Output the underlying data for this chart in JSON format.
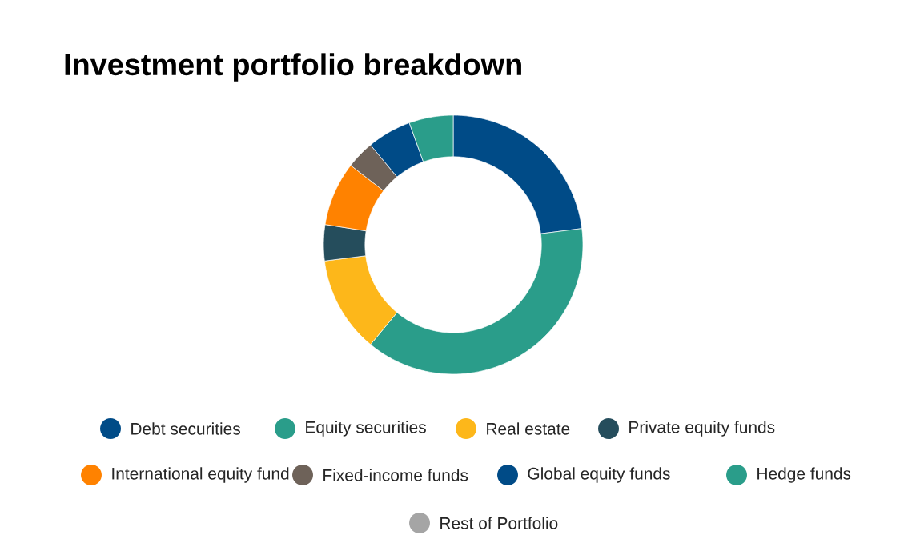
{
  "chart_data": {
    "type": "donut",
    "title": "Investment portfolio breakdown",
    "categories": [
      "Debt securities",
      "Equity securities",
      "Real estate",
      "Private equity funds",
      "International equity fund",
      "Fixed-income funds",
      "Global equity funds",
      "Hedge funds",
      "Rest of Portfolio"
    ],
    "values": [
      23,
      38,
      12,
      4.5,
      8,
      3.5,
      5.5,
      5.5,
      0
    ],
    "colors": [
      "#004b87",
      "#2a9d8a",
      "#fdb71a",
      "#254d5c",
      "#ff8200",
      "#6e6259",
      "#004b87",
      "#2a9d8a",
      "#a5a5a5"
    ],
    "legend": "bottom"
  }
}
